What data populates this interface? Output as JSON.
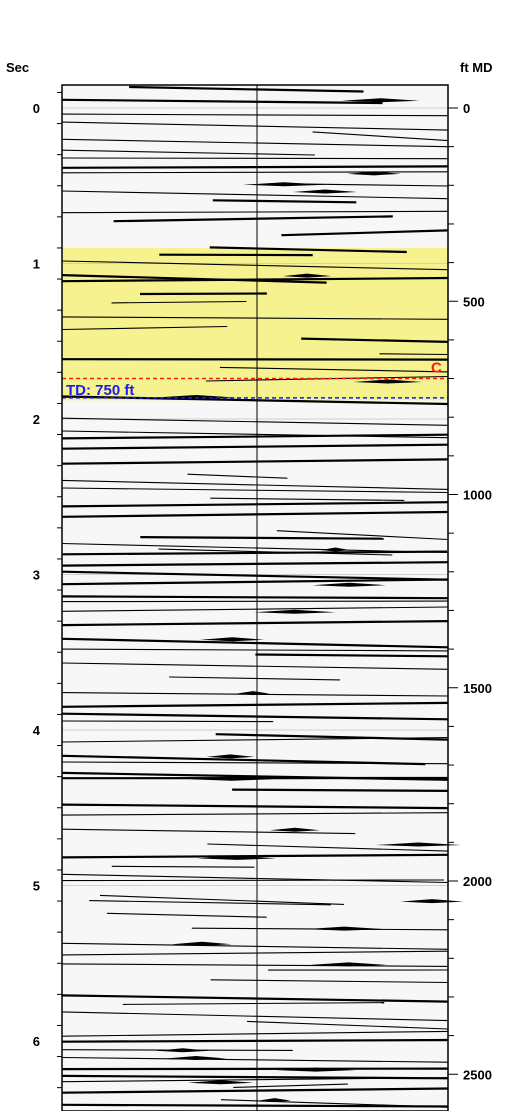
{
  "chart_data": {
    "type": "seismic_well_log",
    "left_axis": {
      "label": "Sec",
      "range": [
        -0.15,
        6.45
      ],
      "ticks": [
        0,
        1,
        2,
        3,
        4,
        5,
        6
      ],
      "tick_labels": [
        "0",
        "1",
        "2",
        "3",
        "4",
        "5",
        "6"
      ],
      "minor_step": 0.2
    },
    "right_axis": {
      "label": "ft MD",
      "range": [
        -60,
        2620
      ],
      "ticks": [
        0,
        500,
        1000,
        1500,
        2000,
        2500
      ],
      "tick_labels": [
        "0",
        "500",
        "1000",
        "1500",
        "2000",
        "2500"
      ],
      "minor_step": 100
    },
    "grid": true,
    "grid_lines_sec": [
      0,
      1,
      2,
      3,
      4,
      5,
      6
    ],
    "center_trace": true,
    "highlight_interval": {
      "from_sec": 0.9,
      "to_sec": 1.88,
      "color": "#f5f28f"
    },
    "markers": [
      {
        "label": "TD: 750 ft",
        "depth_ft": 750,
        "color": "#1a1aff",
        "style": "dashed"
      },
      {
        "label": "C",
        "depth_ft": 700,
        "color": "#ff1a1a",
        "style": "dashed"
      }
    ],
    "colors": {
      "reflector": "#000000",
      "background": "#f7f7f7",
      "grid": "#cfcfcf"
    }
  }
}
